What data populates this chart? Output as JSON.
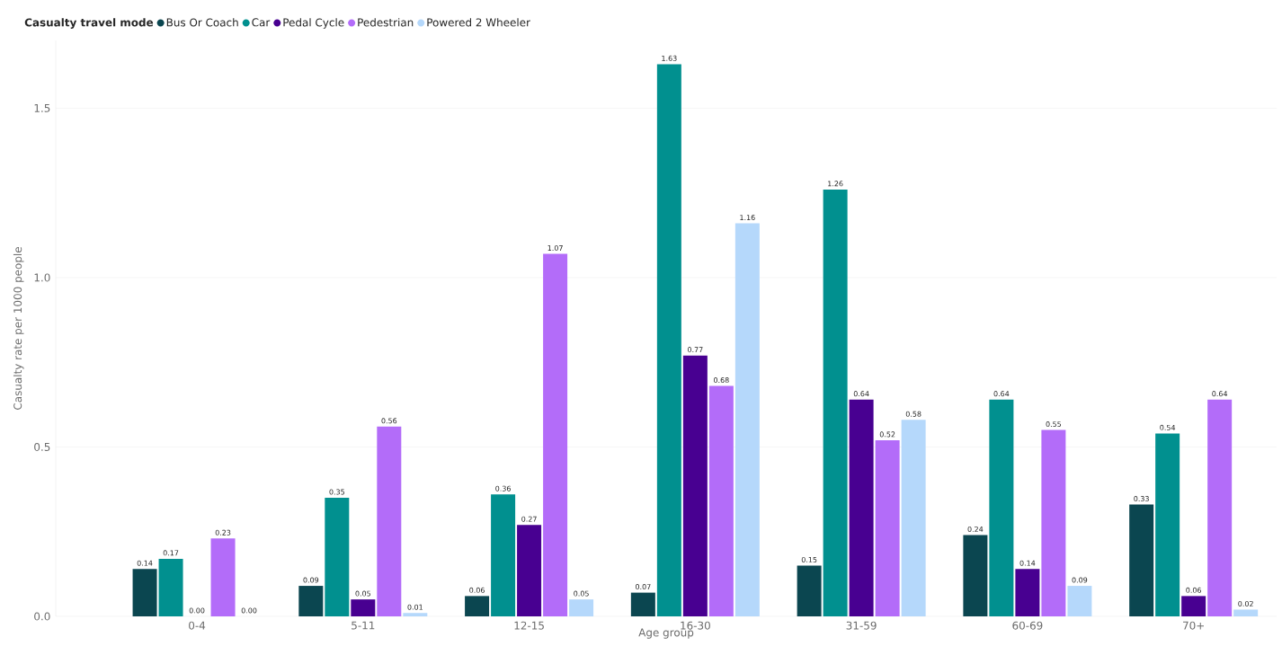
{
  "chart_data": {
    "type": "bar",
    "xlabel": "Age group",
    "ylabel": "Casualty rate per 1000 people",
    "legend_title": "Casualty travel mode",
    "categories": [
      "0-4",
      "5-11",
      "12-15",
      "16-30",
      "31-59",
      "60-69",
      "70+"
    ],
    "series": [
      {
        "name": "Bus Or Coach",
        "color": "#0b4650",
        "values": [
          0.14,
          0.09,
          0.06,
          0.07,
          0.15,
          0.24,
          0.33
        ]
      },
      {
        "name": "Car",
        "color": "#01908f",
        "values": [
          0.17,
          0.35,
          0.36,
          1.63,
          1.26,
          0.64,
          0.54
        ]
      },
      {
        "name": "Pedal Cycle",
        "color": "#480091",
        "values": [
          0.0,
          0.05,
          0.27,
          0.77,
          0.64,
          0.14,
          0.06
        ]
      },
      {
        "name": "Pedestrian",
        "color": "#b36cf9",
        "values": [
          0.23,
          0.56,
          1.07,
          0.68,
          0.52,
          0.55,
          0.64
        ]
      },
      {
        "name": "Powered 2 Wheeler",
        "color": "#b5d8fb",
        "values": [
          0.0,
          0.01,
          0.05,
          1.16,
          0.58,
          0.09,
          0.02
        ]
      }
    ],
    "ylim": [
      0,
      1.7
    ],
    "yticks": [
      {
        "value": 0,
        "label": "0.0"
      },
      {
        "value": 0.5,
        "label": "0.5"
      },
      {
        "value": 1.0,
        "label": "1.0"
      },
      {
        "value": 1.5,
        "label": "1.5"
      }
    ],
    "value_labels": [
      [
        "0.14",
        "0.09",
        "0.06",
        "0.07",
        "0.15",
        "0.24",
        "0.33"
      ],
      [
        "0.17",
        "0.35",
        "0.36",
        "1.63",
        "1.26",
        "0.64",
        "0.54"
      ],
      [
        "0.00",
        "0.05",
        "0.27",
        "0.77",
        "0.64",
        "0.14",
        "0.06"
      ],
      [
        "0.23",
        "0.56",
        "1.07",
        "0.68",
        "0.52",
        "0.55",
        "0.64"
      ],
      [
        "0.00",
        "0.01",
        "0.05",
        "1.16",
        "0.58",
        "0.09",
        "0.02"
      ]
    ],
    "grid": "y",
    "legend": "top left"
  }
}
